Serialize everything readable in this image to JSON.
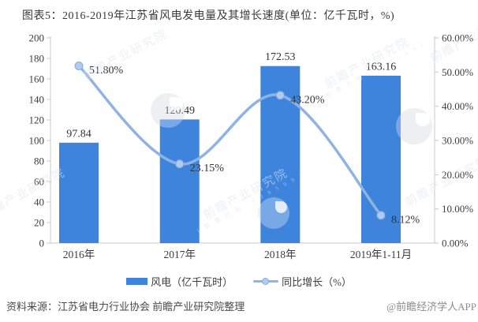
{
  "title": "图表5：2016-2019年江苏省风电发电量及其增长速度(单位：亿千瓦时，%)",
  "chart_data": {
    "type": "combo",
    "categories": [
      "2016年",
      "2017年",
      "2018年",
      "2019年1-11月"
    ],
    "series": [
      {
        "name": "风电（亿千瓦时）",
        "type": "bar",
        "axis": "left",
        "values": [
          97.84,
          120.49,
          172.53,
          163.16
        ],
        "labels": [
          "97.84",
          "120.49",
          "172.53",
          "163.16"
        ],
        "color": "#3E84DC"
      },
      {
        "name": "同比增长（%）",
        "type": "line",
        "axis": "right",
        "values": [
          51.8,
          23.15,
          43.2,
          8.12
        ],
        "labels": [
          "51.80%",
          "23.15%",
          "43.20%",
          "8.12%"
        ],
        "color": "#8FB3E2",
        "marker_fill": "#AFCBEE",
        "marker_stroke": "#86ABDC"
      }
    ],
    "left_axis": {
      "min": 0,
      "max": 200,
      "step": 20,
      "ticks": [
        "200",
        "180",
        "160",
        "140",
        "120",
        "100",
        "80",
        "60",
        "40",
        "20",
        "0"
      ]
    },
    "right_axis": {
      "min": 0,
      "max": 60,
      "step": 10,
      "ticks": [
        "60.00%",
        "50.00%",
        "40.00%",
        "30.00%",
        "20.00%",
        "10.00%",
        "0.00%"
      ]
    },
    "grid": false,
    "legend_position": "bottom",
    "axis_color": "#c9c9c9",
    "tick_text_color": "#3d3d3d",
    "data_label_color": "#333333"
  },
  "legend": {
    "items": [
      {
        "label": "风电（亿千瓦时）",
        "swatch": "bar"
      },
      {
        "label": "同比增长（%）",
        "swatch": "line-marker"
      }
    ]
  },
  "footer": {
    "source": "资料来源：江苏省电力行业协会 前瞻产业研究院整理",
    "credit": "@前瞻经济学人APP"
  },
  "watermark": {
    "text": "前瞻产业研究院",
    "subtext": "( 股 票 代 码 : 8 3 9 5 9 9 )",
    "logo": "qianzhan-circle-logo"
  }
}
